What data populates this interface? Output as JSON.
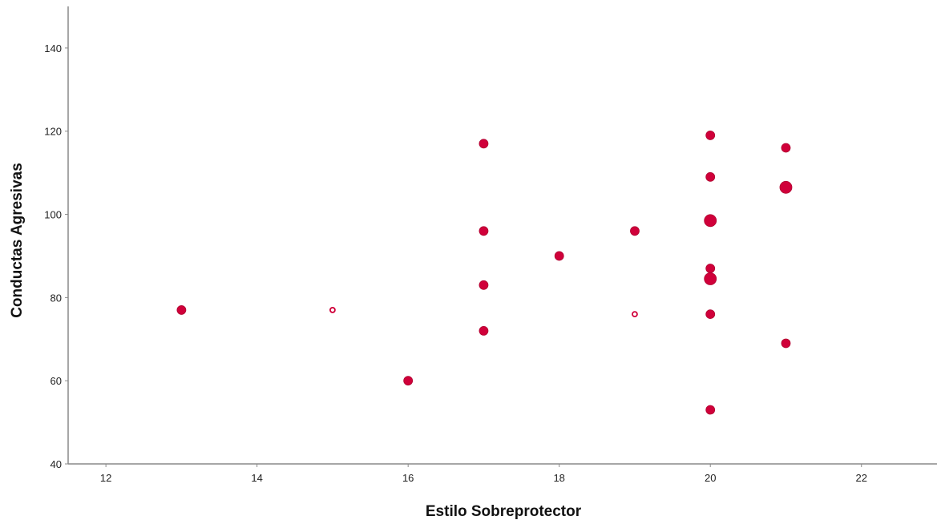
{
  "chart_data": {
    "type": "scatter",
    "title": "",
    "xlabel": "Estilo Sobreprotector",
    "ylabel": "Conductas Agresivas",
    "xlim": [
      11.5,
      23
    ],
    "ylim": [
      40,
      150
    ],
    "x_ticks": [
      12,
      14,
      16,
      18,
      20,
      22
    ],
    "y_ticks": [
      40,
      60,
      80,
      100,
      120,
      140
    ],
    "grid": false,
    "legend": "none",
    "point_color": "#d0003a",
    "points": [
      {
        "x": 13,
        "y": 77,
        "size": 2
      },
      {
        "x": 15,
        "y": 77,
        "size": 1
      },
      {
        "x": 16,
        "y": 60,
        "size": 2
      },
      {
        "x": 17,
        "y": 117,
        "size": 2
      },
      {
        "x": 17,
        "y": 96,
        "size": 2
      },
      {
        "x": 17,
        "y": 83,
        "size": 2
      },
      {
        "x": 17,
        "y": 72,
        "size": 2
      },
      {
        "x": 18,
        "y": 90,
        "size": 2
      },
      {
        "x": 19,
        "y": 96,
        "size": 2
      },
      {
        "x": 19,
        "y": 76,
        "size": 1
      },
      {
        "x": 20,
        "y": 119,
        "size": 2
      },
      {
        "x": 20,
        "y": 109,
        "size": 2
      },
      {
        "x": 20,
        "y": 98.5,
        "size": 3
      },
      {
        "x": 20,
        "y": 87,
        "size": 2
      },
      {
        "x": 20,
        "y": 84.5,
        "size": 3
      },
      {
        "x": 20,
        "y": 76,
        "size": 2
      },
      {
        "x": 20,
        "y": 53,
        "size": 2
      },
      {
        "x": 21,
        "y": 116,
        "size": 2
      },
      {
        "x": 21,
        "y": 106.5,
        "size": 3
      },
      {
        "x": 21,
        "y": 69,
        "size": 2
      }
    ]
  }
}
